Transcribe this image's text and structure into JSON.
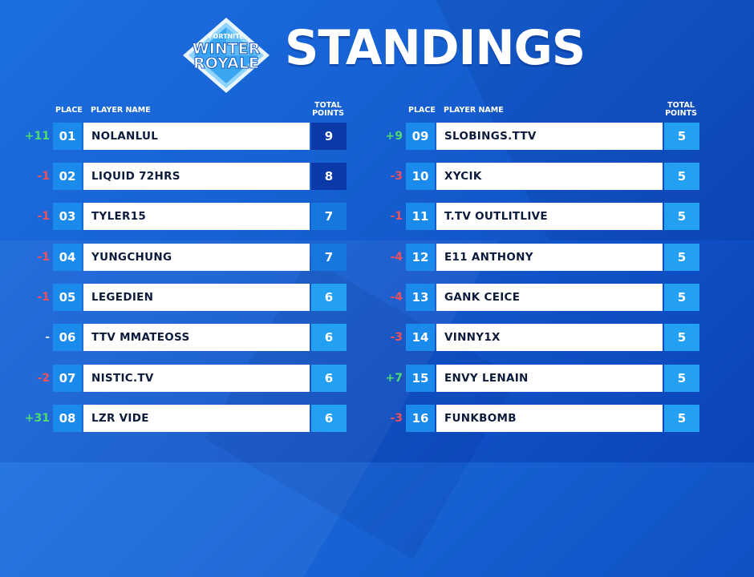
{
  "logo": {
    "line1": "FORTNITE",
    "line2": "WINTER",
    "line3": "ROYALE"
  },
  "title": "STANDINGS",
  "headers": {
    "place": "PLACE",
    "player": "PLAYER NAME",
    "points_line1": "TOTAL",
    "points_line2": "POINTS"
  },
  "colors": {
    "up": "#4fdc6f",
    "down": "#f0505a",
    "place_bg": "#1a8bec",
    "points_bg": "#23a0f2"
  },
  "left_rows": [
    {
      "delta": "+11",
      "trend": "up",
      "place": "01",
      "name": "NOLANLUL",
      "points": "9"
    },
    {
      "delta": "-1",
      "trend": "down",
      "place": "02",
      "name": "LIQUID 72HRS",
      "points": "8"
    },
    {
      "delta": "-1",
      "trend": "down",
      "place": "03",
      "name": "TYLER15",
      "points": "7"
    },
    {
      "delta": "-1",
      "trend": "down",
      "place": "04",
      "name": "YUNGCHUNG",
      "points": "7"
    },
    {
      "delta": "-1",
      "trend": "down",
      "place": "05",
      "name": "LEGEDIEN",
      "points": "6"
    },
    {
      "delta": "-",
      "trend": "flat",
      "place": "06",
      "name": "TTV MMATEOSS",
      "points": "6"
    },
    {
      "delta": "-2",
      "trend": "down",
      "place": "07",
      "name": "NISTIC.TV",
      "points": "6"
    },
    {
      "delta": "+31",
      "trend": "up",
      "place": "08",
      "name": "LZR VIDE",
      "points": "6"
    }
  ],
  "right_rows": [
    {
      "delta": "+9",
      "trend": "up",
      "place": "09",
      "name": "SLOBINGS.TTV",
      "points": "5"
    },
    {
      "delta": "-3",
      "trend": "down",
      "place": "10",
      "name": "XYCIK",
      "points": "5"
    },
    {
      "delta": "-1",
      "trend": "down",
      "place": "11",
      "name": "T.TV OUTLITLIVE",
      "points": "5"
    },
    {
      "delta": "-4",
      "trend": "down",
      "place": "12",
      "name": "E11 ANTHONY",
      "points": "5"
    },
    {
      "delta": "-4",
      "trend": "down",
      "place": "13",
      "name": "GANK CEICE",
      "points": "5"
    },
    {
      "delta": "-3",
      "trend": "down",
      "place": "14",
      "name": "VINNY1X",
      "points": "5"
    },
    {
      "delta": "+7",
      "trend": "up",
      "place": "15",
      "name": "ENVY LENAIN",
      "points": "5"
    },
    {
      "delta": "-3",
      "trend": "down",
      "place": "16",
      "name": "FUNKBOMB",
      "points": "5"
    }
  ]
}
